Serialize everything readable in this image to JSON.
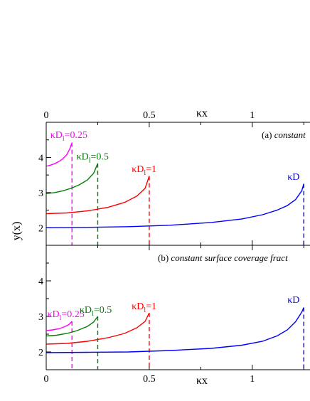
{
  "chart_data": [
    {
      "type": "line",
      "panel_label": "(a) constant",
      "panel_label_prefix": "(a) ",
      "panel_label_italic": "constant",
      "xlabel": "κx",
      "ylabel": "y(x)",
      "xlim": [
        0,
        1.28
      ],
      "ylim": [
        1.5,
        5.0
      ],
      "x_ticks": [
        0,
        0.5,
        1
      ],
      "x_tick_labels": [
        "0",
        "0.5",
        "1"
      ],
      "y_ticks": [
        2,
        3,
        4
      ],
      "y_tick_labels": [
        "2",
        "3",
        "4"
      ],
      "grid": false,
      "series": [
        {
          "name": "κD1=0.25",
          "label_main": "κD",
          "label_sub": "l",
          "label_tail": "=0.25",
          "color": "#ff00ff",
          "x_end": 0.125,
          "points": [
            [
              0,
              3.75
            ],
            [
              0.02,
              3.78
            ],
            [
              0.04,
              3.82
            ],
            [
              0.06,
              3.88
            ],
            [
              0.08,
              3.96
            ],
            [
              0.1,
              4.08
            ],
            [
              0.115,
              4.25
            ],
            [
              0.125,
              4.42
            ]
          ]
        },
        {
          "name": "κD1=0.5",
          "label_main": "κD",
          "label_sub": "l",
          "label_tail": "=0.5",
          "color": "#008000",
          "x_end": 0.25,
          "points": [
            [
              0,
              2.97
            ],
            [
              0.04,
              3.0
            ],
            [
              0.08,
              3.05
            ],
            [
              0.12,
              3.12
            ],
            [
              0.16,
              3.22
            ],
            [
              0.2,
              3.36
            ],
            [
              0.23,
              3.55
            ],
            [
              0.25,
              3.83
            ]
          ]
        },
        {
          "name": "κD1=1",
          "label_main": "κD",
          "label_sub": "l",
          "label_tail": "=1",
          "color": "#ff0000",
          "x_end": 0.5,
          "points": [
            [
              0,
              2.4
            ],
            [
              0.1,
              2.42
            ],
            [
              0.2,
              2.48
            ],
            [
              0.3,
              2.58
            ],
            [
              0.38,
              2.72
            ],
            [
              0.44,
              2.9
            ],
            [
              0.48,
              3.12
            ],
            [
              0.5,
              3.47
            ]
          ]
        },
        {
          "name": "κD",
          "label_main": "κD",
          "label_sub": "",
          "label_tail": "",
          "color": "#0000ff",
          "x_end": 1.25,
          "points": [
            [
              0,
              2.0
            ],
            [
              0.2,
              2.01
            ],
            [
              0.4,
              2.03
            ],
            [
              0.6,
              2.07
            ],
            [
              0.8,
              2.15
            ],
            [
              0.95,
              2.25
            ],
            [
              1.05,
              2.37
            ],
            [
              1.12,
              2.5
            ],
            [
              1.17,
              2.63
            ],
            [
              1.21,
              2.8
            ],
            [
              1.24,
              3.05
            ],
            [
              1.25,
              3.25
            ]
          ]
        }
      ]
    },
    {
      "type": "line",
      "panel_label": "(b) constant surface coverage fract",
      "panel_label_prefix": "(b) ",
      "panel_label_italic": "constant surface coverage fract",
      "xlabel": "κx",
      "ylabel": "",
      "xlim": [
        0,
        1.28
      ],
      "ylim": [
        1.5,
        5.0
      ],
      "x_ticks": [
        0,
        0.5,
        1
      ],
      "x_tick_labels": [
        "0",
        "0.5",
        "1"
      ],
      "y_ticks": [
        2,
        3,
        4
      ],
      "y_tick_labels": [
        "2",
        "3",
        "4"
      ],
      "grid": false,
      "series": [
        {
          "name": "κD1=0.25",
          "label_main": "κD",
          "label_sub": "l",
          "label_tail": "=0.25",
          "color": "#ff00ff",
          "x_end": 0.125,
          "points": [
            [
              0,
              2.6
            ],
            [
              0.03,
              2.62
            ],
            [
              0.06,
              2.65
            ],
            [
              0.09,
              2.71
            ],
            [
              0.11,
              2.77
            ],
            [
              0.125,
              2.86
            ]
          ]
        },
        {
          "name": "κD1=0.5",
          "label_main": "κD",
          "label_sub": "l",
          "label_tail": "=0.5",
          "color": "#008000",
          "x_end": 0.25,
          "points": [
            [
              0,
              2.45
            ],
            [
              0.05,
              2.47
            ],
            [
              0.1,
              2.52
            ],
            [
              0.15,
              2.6
            ],
            [
              0.2,
              2.72
            ],
            [
              0.23,
              2.84
            ],
            [
              0.25,
              3.0
            ]
          ]
        },
        {
          "name": "κD1=1",
          "label_main": "κD",
          "label_sub": "l",
          "label_tail": "=1",
          "color": "#ff0000",
          "x_end": 0.5,
          "points": [
            [
              0,
              2.22
            ],
            [
              0.1,
              2.24
            ],
            [
              0.2,
              2.3
            ],
            [
              0.3,
              2.4
            ],
            [
              0.38,
              2.52
            ],
            [
              0.44,
              2.68
            ],
            [
              0.48,
              2.86
            ],
            [
              0.5,
              3.1
            ]
          ]
        },
        {
          "name": "κD",
          "label_main": "κD",
          "label_sub": "",
          "label_tail": "",
          "color": "#0000ff",
          "x_end": 1.25,
          "points": [
            [
              0,
              1.98
            ],
            [
              0.2,
              1.99
            ],
            [
              0.4,
              2.0
            ],
            [
              0.6,
              2.04
            ],
            [
              0.8,
              2.1
            ],
            [
              0.95,
              2.19
            ],
            [
              1.05,
              2.3
            ],
            [
              1.12,
              2.45
            ],
            [
              1.17,
              2.62
            ],
            [
              1.21,
              2.85
            ],
            [
              1.24,
              3.12
            ],
            [
              1.25,
              3.25
            ]
          ]
        }
      ]
    }
  ]
}
